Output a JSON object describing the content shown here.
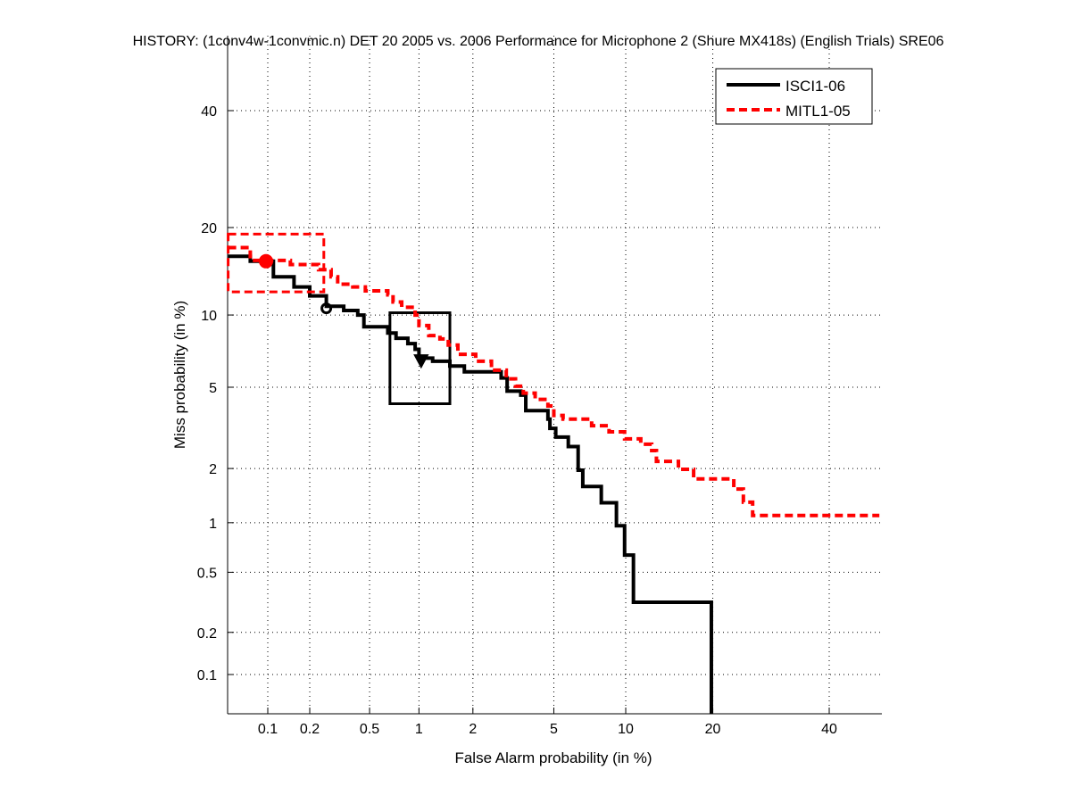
{
  "chart_data": {
    "type": "line",
    "title": "HISTORY: (1conv4w-1convmic.n) DET 20 2005 vs. 2006 Performance for Microphone 2 (Shure MX418s) (English Trials) SRE06",
    "xlabel": "False Alarm probability (in %)",
    "ylabel": "Miss probability (in %)",
    "x_scale": "normal-deviate",
    "y_scale": "normal-deviate",
    "xlim": [
      0.05,
      50
    ],
    "ylim": [
      0.05,
      55
    ],
    "x_ticks": [
      0.1,
      0.2,
      0.5,
      1,
      2,
      5,
      10,
      20,
      40
    ],
    "x_tick_labels": [
      "0.1",
      "0.2",
      "0.5",
      "1",
      "2",
      "5",
      "10",
      "20",
      "40"
    ],
    "y_ticks": [
      0.1,
      0.2,
      0.5,
      1,
      2,
      5,
      10,
      20,
      40
    ],
    "y_tick_labels": [
      "0.1",
      "0.2",
      "0.5",
      "1",
      "2",
      "5",
      "10",
      "20",
      "40"
    ],
    "grid": true,
    "legend_position": "top-right",
    "series": [
      {
        "name": "ISCI1-06",
        "color": "#000000",
        "style": "solid",
        "step_points": [
          [
            0.05,
            16.2
          ],
          [
            0.074,
            15.6
          ],
          [
            0.11,
            13.8
          ],
          [
            0.155,
            12.7
          ],
          [
            0.2,
            11.8
          ],
          [
            0.26,
            10.8
          ],
          [
            0.34,
            10.4
          ],
          [
            0.42,
            10
          ],
          [
            0.46,
            9.0
          ],
          [
            0.65,
            8.5
          ],
          [
            0.73,
            8.1
          ],
          [
            0.86,
            7.7
          ],
          [
            0.95,
            7.3
          ],
          [
            1.0,
            6.7
          ],
          [
            1.2,
            6.5
          ],
          [
            1.5,
            6.2
          ],
          [
            1.8,
            5.85
          ],
          [
            2.8,
            5.5
          ],
          [
            3.0,
            4.8
          ],
          [
            3.5,
            4.6
          ],
          [
            3.7,
            3.9
          ],
          [
            4.7,
            3.55
          ],
          [
            4.8,
            3.2
          ],
          [
            5.1,
            2.9
          ],
          [
            5.8,
            2.6
          ],
          [
            6.4,
            1.96
          ],
          [
            6.7,
            1.6
          ],
          [
            8.0,
            1.3
          ],
          [
            9.2,
            0.96
          ],
          [
            9.9,
            0.64
          ],
          [
            10.7,
            0.32
          ],
          [
            19.8,
            0.05
          ]
        ],
        "markers": [
          {
            "shape": "open-circle",
            "fa": 0.26,
            "miss": 10.6
          },
          {
            "shape": "diamond",
            "fa": 1.03,
            "miss": 6.6
          }
        ],
        "box": {
          "fa": [
            0.67,
            1.5
          ],
          "miss": [
            4.2,
            10.2
          ]
        }
      },
      {
        "name": "MITL1-05",
        "color": "#ff0000",
        "style": "dashed",
        "step_points": [
          [
            0.05,
            17.3
          ],
          [
            0.074,
            15.7
          ],
          [
            0.146,
            15.2
          ],
          [
            0.23,
            14.6
          ],
          [
            0.28,
            13.8
          ],
          [
            0.31,
            13.0
          ],
          [
            0.39,
            12.7
          ],
          [
            0.47,
            12.3
          ],
          [
            0.65,
            11.9
          ],
          [
            0.7,
            11.2
          ],
          [
            0.79,
            10.7
          ],
          [
            0.95,
            10.0
          ],
          [
            1.0,
            9.1
          ],
          [
            1.14,
            8.3
          ],
          [
            1.32,
            8.05
          ],
          [
            1.47,
            7.6
          ],
          [
            1.66,
            6.95
          ],
          [
            2.07,
            6.5
          ],
          [
            2.5,
            5.95
          ],
          [
            2.97,
            5.45
          ],
          [
            3.3,
            5.05
          ],
          [
            3.6,
            4.7
          ],
          [
            4.1,
            4.4
          ],
          [
            4.7,
            4.1
          ],
          [
            5.0,
            3.7
          ],
          [
            5.5,
            3.55
          ],
          [
            7.3,
            3.3
          ],
          [
            8.6,
            3.08
          ],
          [
            9.9,
            2.84
          ],
          [
            11.4,
            2.67
          ],
          [
            12.5,
            2.48
          ],
          [
            13,
            2.18
          ],
          [
            15.5,
            1.98
          ],
          [
            17.4,
            1.76
          ],
          [
            23.1,
            1.55
          ],
          [
            24.6,
            1.31
          ],
          [
            26.1,
            1.1
          ],
          [
            50,
            1.1
          ]
        ],
        "markers": [
          {
            "shape": "filled-circle",
            "fa": 0.097,
            "miss": 15.6
          }
        ],
        "box": {
          "fa": [
            0.05,
            0.25
          ],
          "miss": [
            12.2,
            19.1
          ]
        }
      }
    ]
  }
}
